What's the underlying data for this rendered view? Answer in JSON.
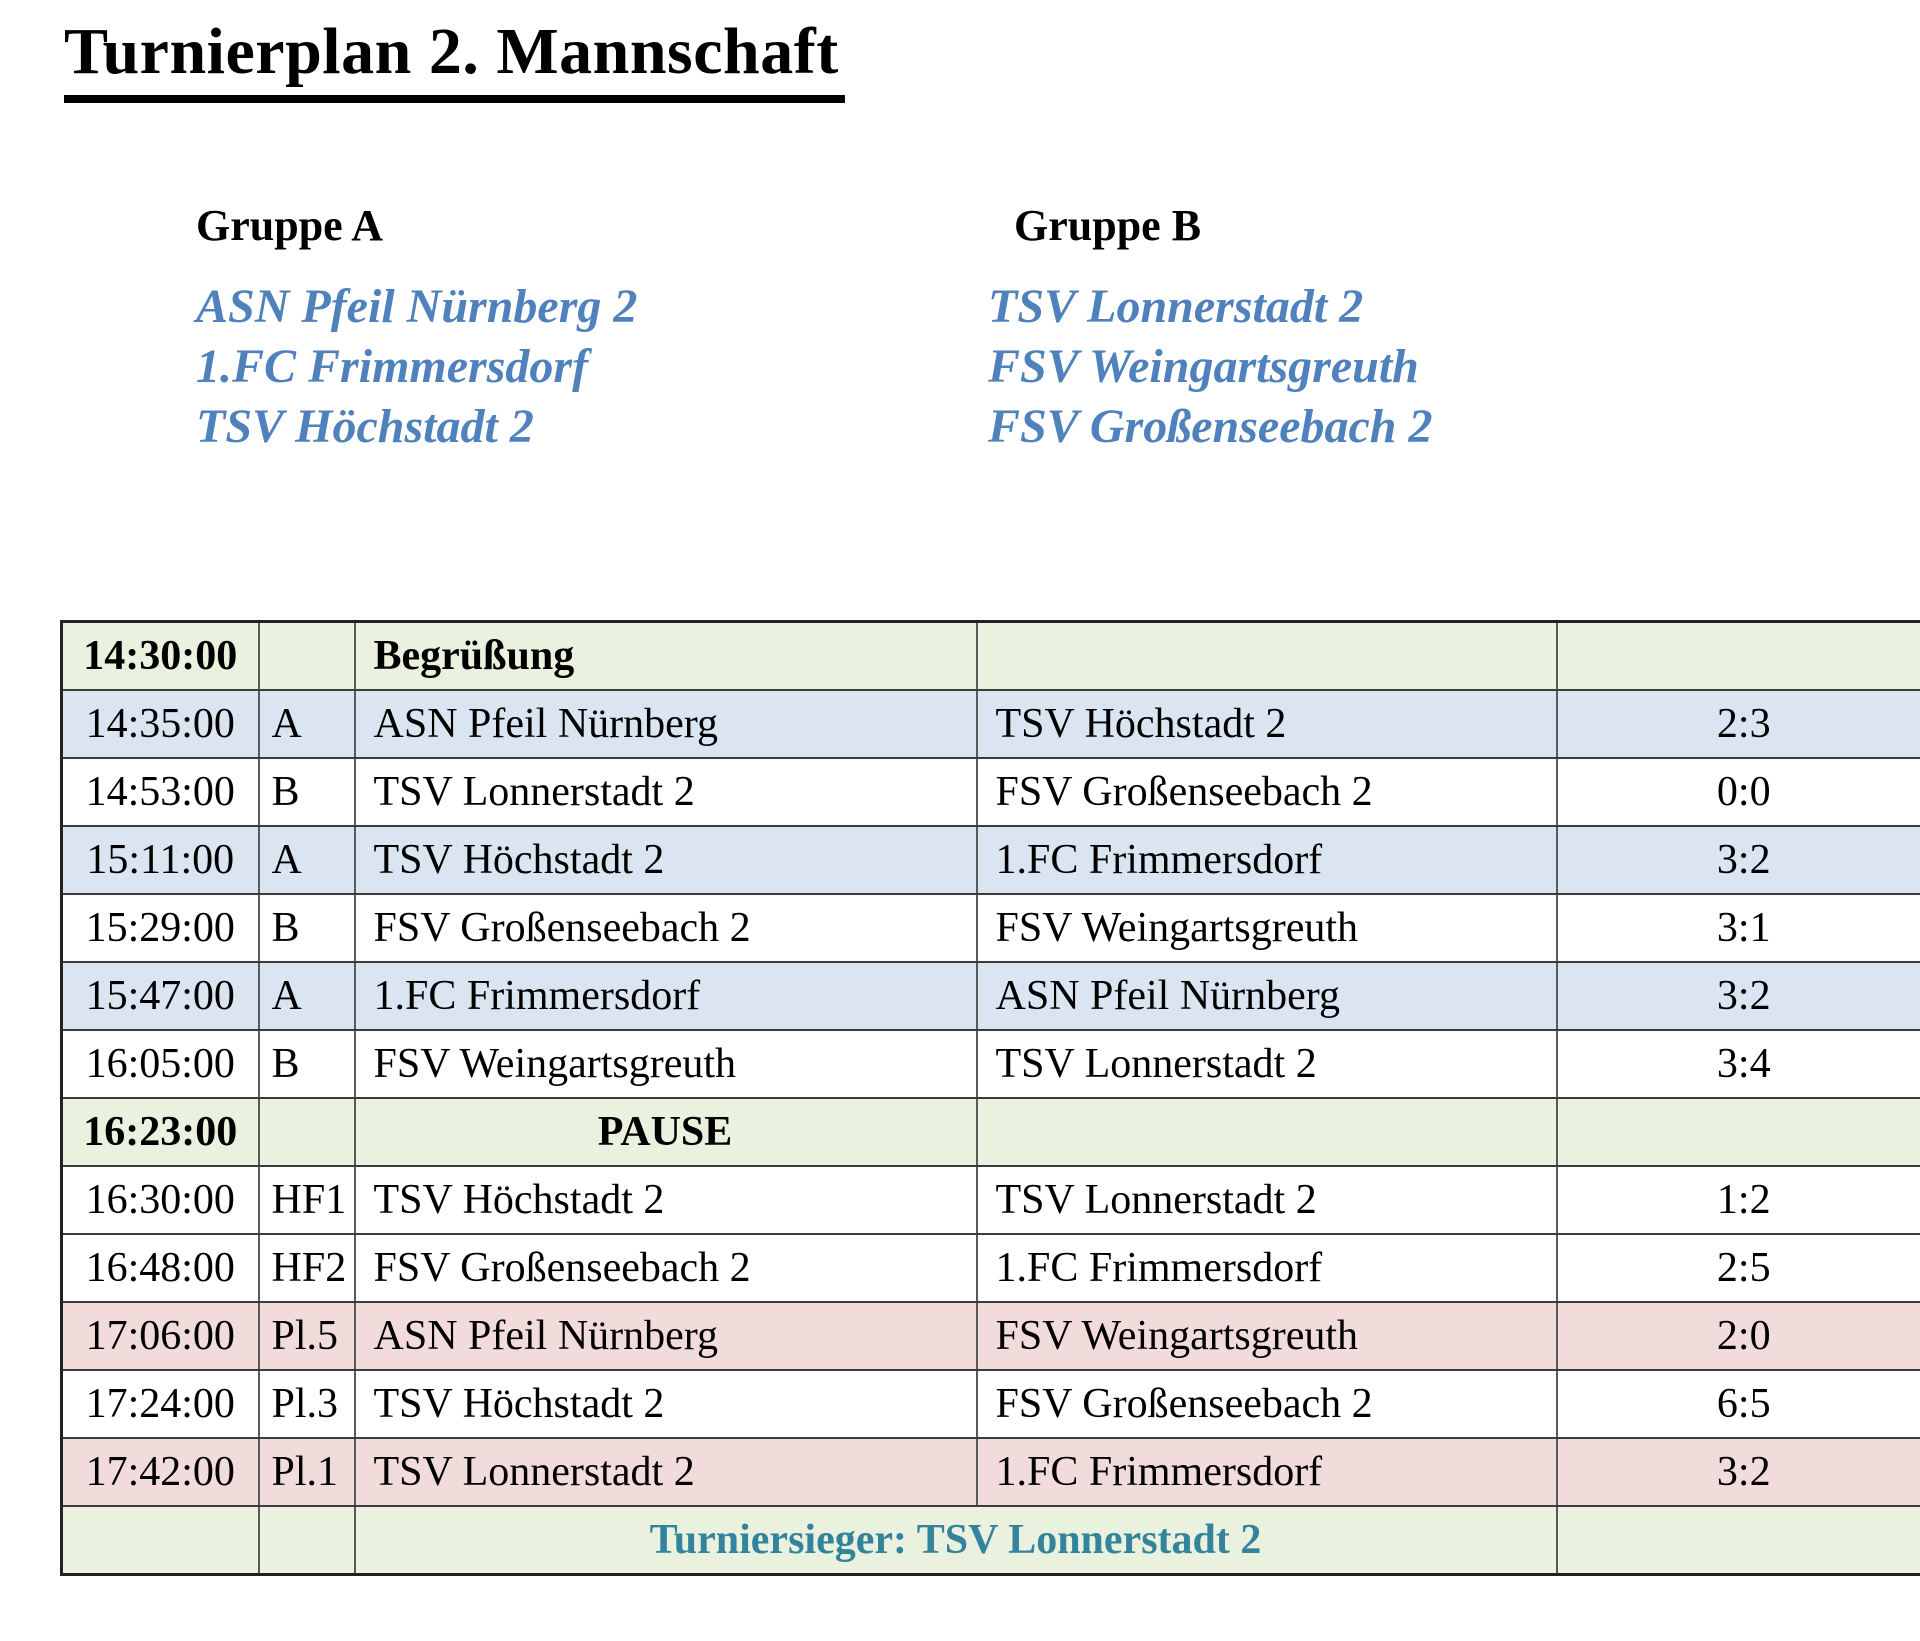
{
  "title": "Turnierplan 2. Mannschaft",
  "groups": [
    {
      "label": "Gruppe A",
      "teams": [
        "ASN Pfeil Nürnberg 2",
        "1.FC Frimmersdorf",
        "TSV Höchstadt 2"
      ]
    },
    {
      "label": "Gruppe B",
      "teams": [
        "TSV Lonnerstadt 2",
        "FSV Weingartsgreuth",
        "FSV Großenseebach 2"
      ]
    }
  ],
  "colors": {
    "team_text": "#4f81bd",
    "winner_text": "#31849b",
    "row_green": "#eaf1de",
    "row_blue": "#dbe5f1",
    "row_pink": "#f2dbdb",
    "row_white": "#ffffff"
  },
  "schedule": {
    "rows": [
      {
        "time": "14:30:00",
        "tag": "",
        "home": "Begrüßung",
        "away": "",
        "score": "",
        "bg": "green",
        "bold": true,
        "home_align": "left"
      },
      {
        "time": "14:35:00",
        "tag": "A",
        "home": "ASN Pfeil Nürnberg",
        "away": "TSV Höchstadt 2",
        "score": "2:3",
        "bg": "blue"
      },
      {
        "time": "14:53:00",
        "tag": "B",
        "home": "TSV Lonnerstadt 2",
        "away": "FSV Großenseebach 2",
        "score": "0:0",
        "bg": "white"
      },
      {
        "time": "15:11:00",
        "tag": "A",
        "home": "TSV Höchstadt 2",
        "away": "1.FC Frimmersdorf",
        "score": "3:2",
        "bg": "blue"
      },
      {
        "time": "15:29:00",
        "tag": "B",
        "home": "FSV Großenseebach 2",
        "away": "FSV Weingartsgreuth",
        "score": "3:1",
        "bg": "white"
      },
      {
        "time": "15:47:00",
        "tag": "A",
        "home": "1.FC Frimmersdorf",
        "away": "ASN Pfeil Nürnberg",
        "score": "3:2",
        "bg": "blue"
      },
      {
        "time": "16:05:00",
        "tag": "B",
        "home": "FSV Weingartsgreuth",
        "away": "TSV Lonnerstadt 2",
        "score": "3:4",
        "bg": "white"
      },
      {
        "time": "16:23:00",
        "tag": "",
        "home": "PAUSE",
        "away": "",
        "score": "",
        "bg": "green",
        "bold": true,
        "home_align": "center"
      },
      {
        "time": "16:30:00",
        "tag": "HF1",
        "home": "TSV Höchstadt 2",
        "away": "TSV Lonnerstadt 2",
        "score": "1:2",
        "bg": "white"
      },
      {
        "time": "16:48:00",
        "tag": "HF2",
        "home": "FSV Großenseebach 2",
        "away": "1.FC Frimmersdorf",
        "score": "2:5",
        "bg": "white"
      },
      {
        "time": "17:06:00",
        "tag": "Pl.5",
        "home": "ASN Pfeil Nürnberg",
        "away": "FSV Weingartsgreuth",
        "score": "2:0",
        "bg": "pink"
      },
      {
        "time": "17:24:00",
        "tag": "Pl.3",
        "home": "TSV Höchstadt 2",
        "away": "FSV Großenseebach 2",
        "score": "6:5",
        "bg": "white"
      },
      {
        "time": "17:42:00",
        "tag": "Pl.1",
        "home": "TSV Lonnerstadt 2",
        "away": "1.FC Frimmersdorf",
        "score": "3:2",
        "bg": "pink"
      },
      {
        "time": "",
        "tag": "",
        "winner": "Turniersieger: TSV Lonnerstadt 2",
        "score": "",
        "bg": "green"
      }
    ]
  }
}
